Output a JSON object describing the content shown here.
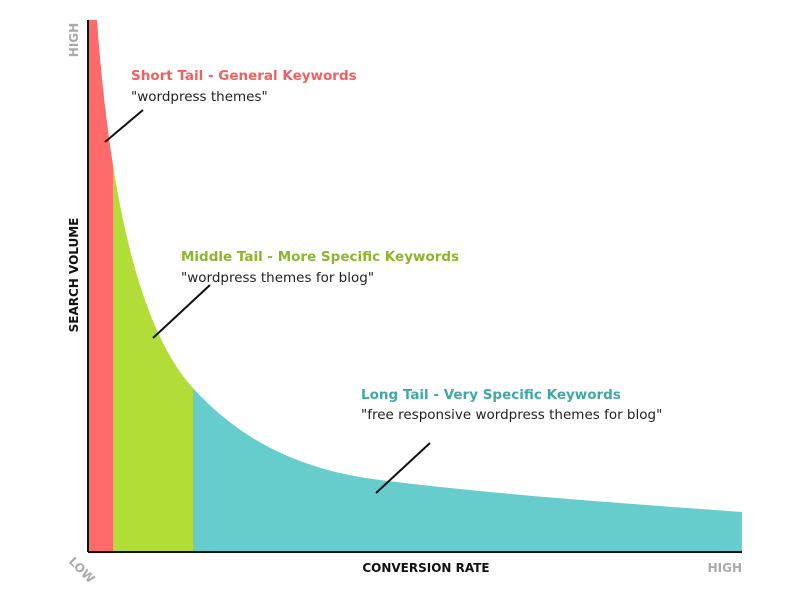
{
  "axes": {
    "y_high": "HIGH",
    "y_label": "SEARCH VOLUME",
    "origin_low": "LOW",
    "x_label": "CONVERSION RATE",
    "x_high": "HIGH"
  },
  "segments": [
    {
      "title": "Short Tail - General Keywords",
      "example": "\"wordpress themes\""
    },
    {
      "title": "Middle Tail - More Specific Keywords",
      "example": "\"wordpress themes for blog\""
    },
    {
      "title": "Long Tail - Very Specific Keywords",
      "example": "\"free responsive wordpress themes for blog\""
    }
  ]
}
